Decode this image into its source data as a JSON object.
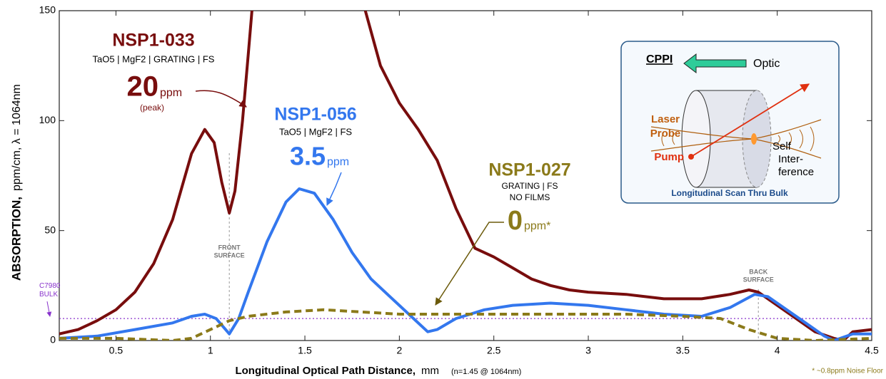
{
  "chart_data": {
    "type": "line",
    "x_label": "Longitudinal Optical Path Distance,",
    "x_unit": "mm",
    "x_note": "(n=1.45 @ 1064nm)",
    "y_label": "ABSORPTION,",
    "y_unit": "ppm/cm,  λ = 1064nm",
    "footnote": "* ~0.8ppm Noise Floor",
    "xlim": [
      0.2,
      4.5
    ],
    "ylim": [
      0,
      150
    ],
    "xticks": [
      0.5,
      1,
      1.5,
      2,
      2.5,
      3,
      3.5,
      4,
      4.5
    ],
    "yticks": [
      0,
      50,
      100,
      150
    ],
    "series": [
      {
        "name": "NSP1-033",
        "color": "#780d0d",
        "line_style": "solid",
        "subtitle": "TaO5 | MgF2 | GRATING | FS",
        "big": "20",
        "unit": "ppm",
        "note": "(peak)",
        "x": [
          0.2,
          0.3,
          0.4,
          0.5,
          0.6,
          0.7,
          0.8,
          0.85,
          0.9,
          0.97,
          1.02,
          1.06,
          1.1,
          1.13,
          1.17,
          1.2,
          1.22,
          1.5,
          1.82,
          1.9,
          2.0,
          2.1,
          2.2,
          2.3,
          2.4,
          2.5,
          2.6,
          2.7,
          2.8,
          2.9,
          3.0,
          3.2,
          3.4,
          3.6,
          3.75,
          3.85,
          3.9,
          4.0,
          4.1,
          4.2,
          4.3,
          4.35,
          4.4,
          4.5
        ],
        "values": [
          3,
          5,
          9,
          14,
          22,
          35,
          55,
          70,
          85,
          96,
          90,
          72,
          58,
          68,
          100,
          130,
          150,
          null,
          150,
          125,
          108,
          96,
          82,
          60,
          42,
          38,
          33,
          28,
          25,
          23,
          22,
          21,
          19,
          19,
          21,
          23,
          22,
          16,
          10,
          4,
          1,
          0,
          4,
          5
        ]
      },
      {
        "name": "NSP1-056",
        "color": "#3377ee",
        "line_style": "solid",
        "subtitle": "TaO5 | MgF2 | FS",
        "big": "3.5",
        "unit": "ppm",
        "x": [
          0.2,
          0.4,
          0.6,
          0.8,
          0.9,
          0.97,
          1.03,
          1.1,
          1.15,
          1.2,
          1.3,
          1.4,
          1.47,
          1.55,
          1.65,
          1.75,
          1.85,
          1.95,
          2.05,
          2.15,
          2.2,
          2.3,
          2.45,
          2.6,
          2.8,
          3.0,
          3.2,
          3.4,
          3.6,
          3.75,
          3.88,
          3.95,
          4.05,
          4.15,
          4.25,
          4.3,
          4.4,
          4.5
        ],
        "values": [
          1,
          2,
          5,
          8,
          11,
          12,
          10,
          3,
          10,
          22,
          45,
          63,
          69,
          67,
          55,
          40,
          28,
          20,
          12,
          4,
          5,
          10,
          14,
          16,
          17,
          16,
          14,
          12,
          11,
          15,
          21,
          20,
          14,
          8,
          2,
          0,
          3,
          3
        ]
      },
      {
        "name": "NSP1-027",
        "color": "#8b7a1a",
        "line_style": "dashed",
        "subtitle": "GRATING | FS",
        "subtitle2": "NO FILMS",
        "big": "0",
        "unit": "ppm*",
        "x": [
          0.2,
          0.5,
          0.8,
          0.9,
          1.0,
          1.1,
          1.2,
          1.4,
          1.6,
          1.8,
          2.0,
          2.4,
          2.8,
          3.2,
          3.5,
          3.7,
          3.85,
          4.0,
          4.2,
          4.5
        ],
        "values": [
          1,
          1,
          0,
          1,
          5,
          9,
          11,
          13,
          14,
          13,
          12,
          12,
          12,
          12,
          11,
          10,
          5,
          1,
          0,
          1
        ]
      }
    ],
    "noise_floor": {
      "value": 10,
      "color": "#8833cc",
      "label": [
        "C7980",
        "BULK"
      ]
    },
    "surfaces": [
      {
        "x": 1.1,
        "label": [
          "FRONT",
          "SURFACE"
        ]
      },
      {
        "x": 3.9,
        "label": [
          "BACK",
          "SURFACE"
        ]
      }
    ],
    "inset": {
      "title": "CPPI",
      "optic": "Optic",
      "probe": [
        "Laser",
        "Probe"
      ],
      "pump": "Pump",
      "self": [
        "Self",
        "Inter-",
        "ference"
      ],
      "caption": "Longitudinal Scan Thru Bulk"
    }
  }
}
